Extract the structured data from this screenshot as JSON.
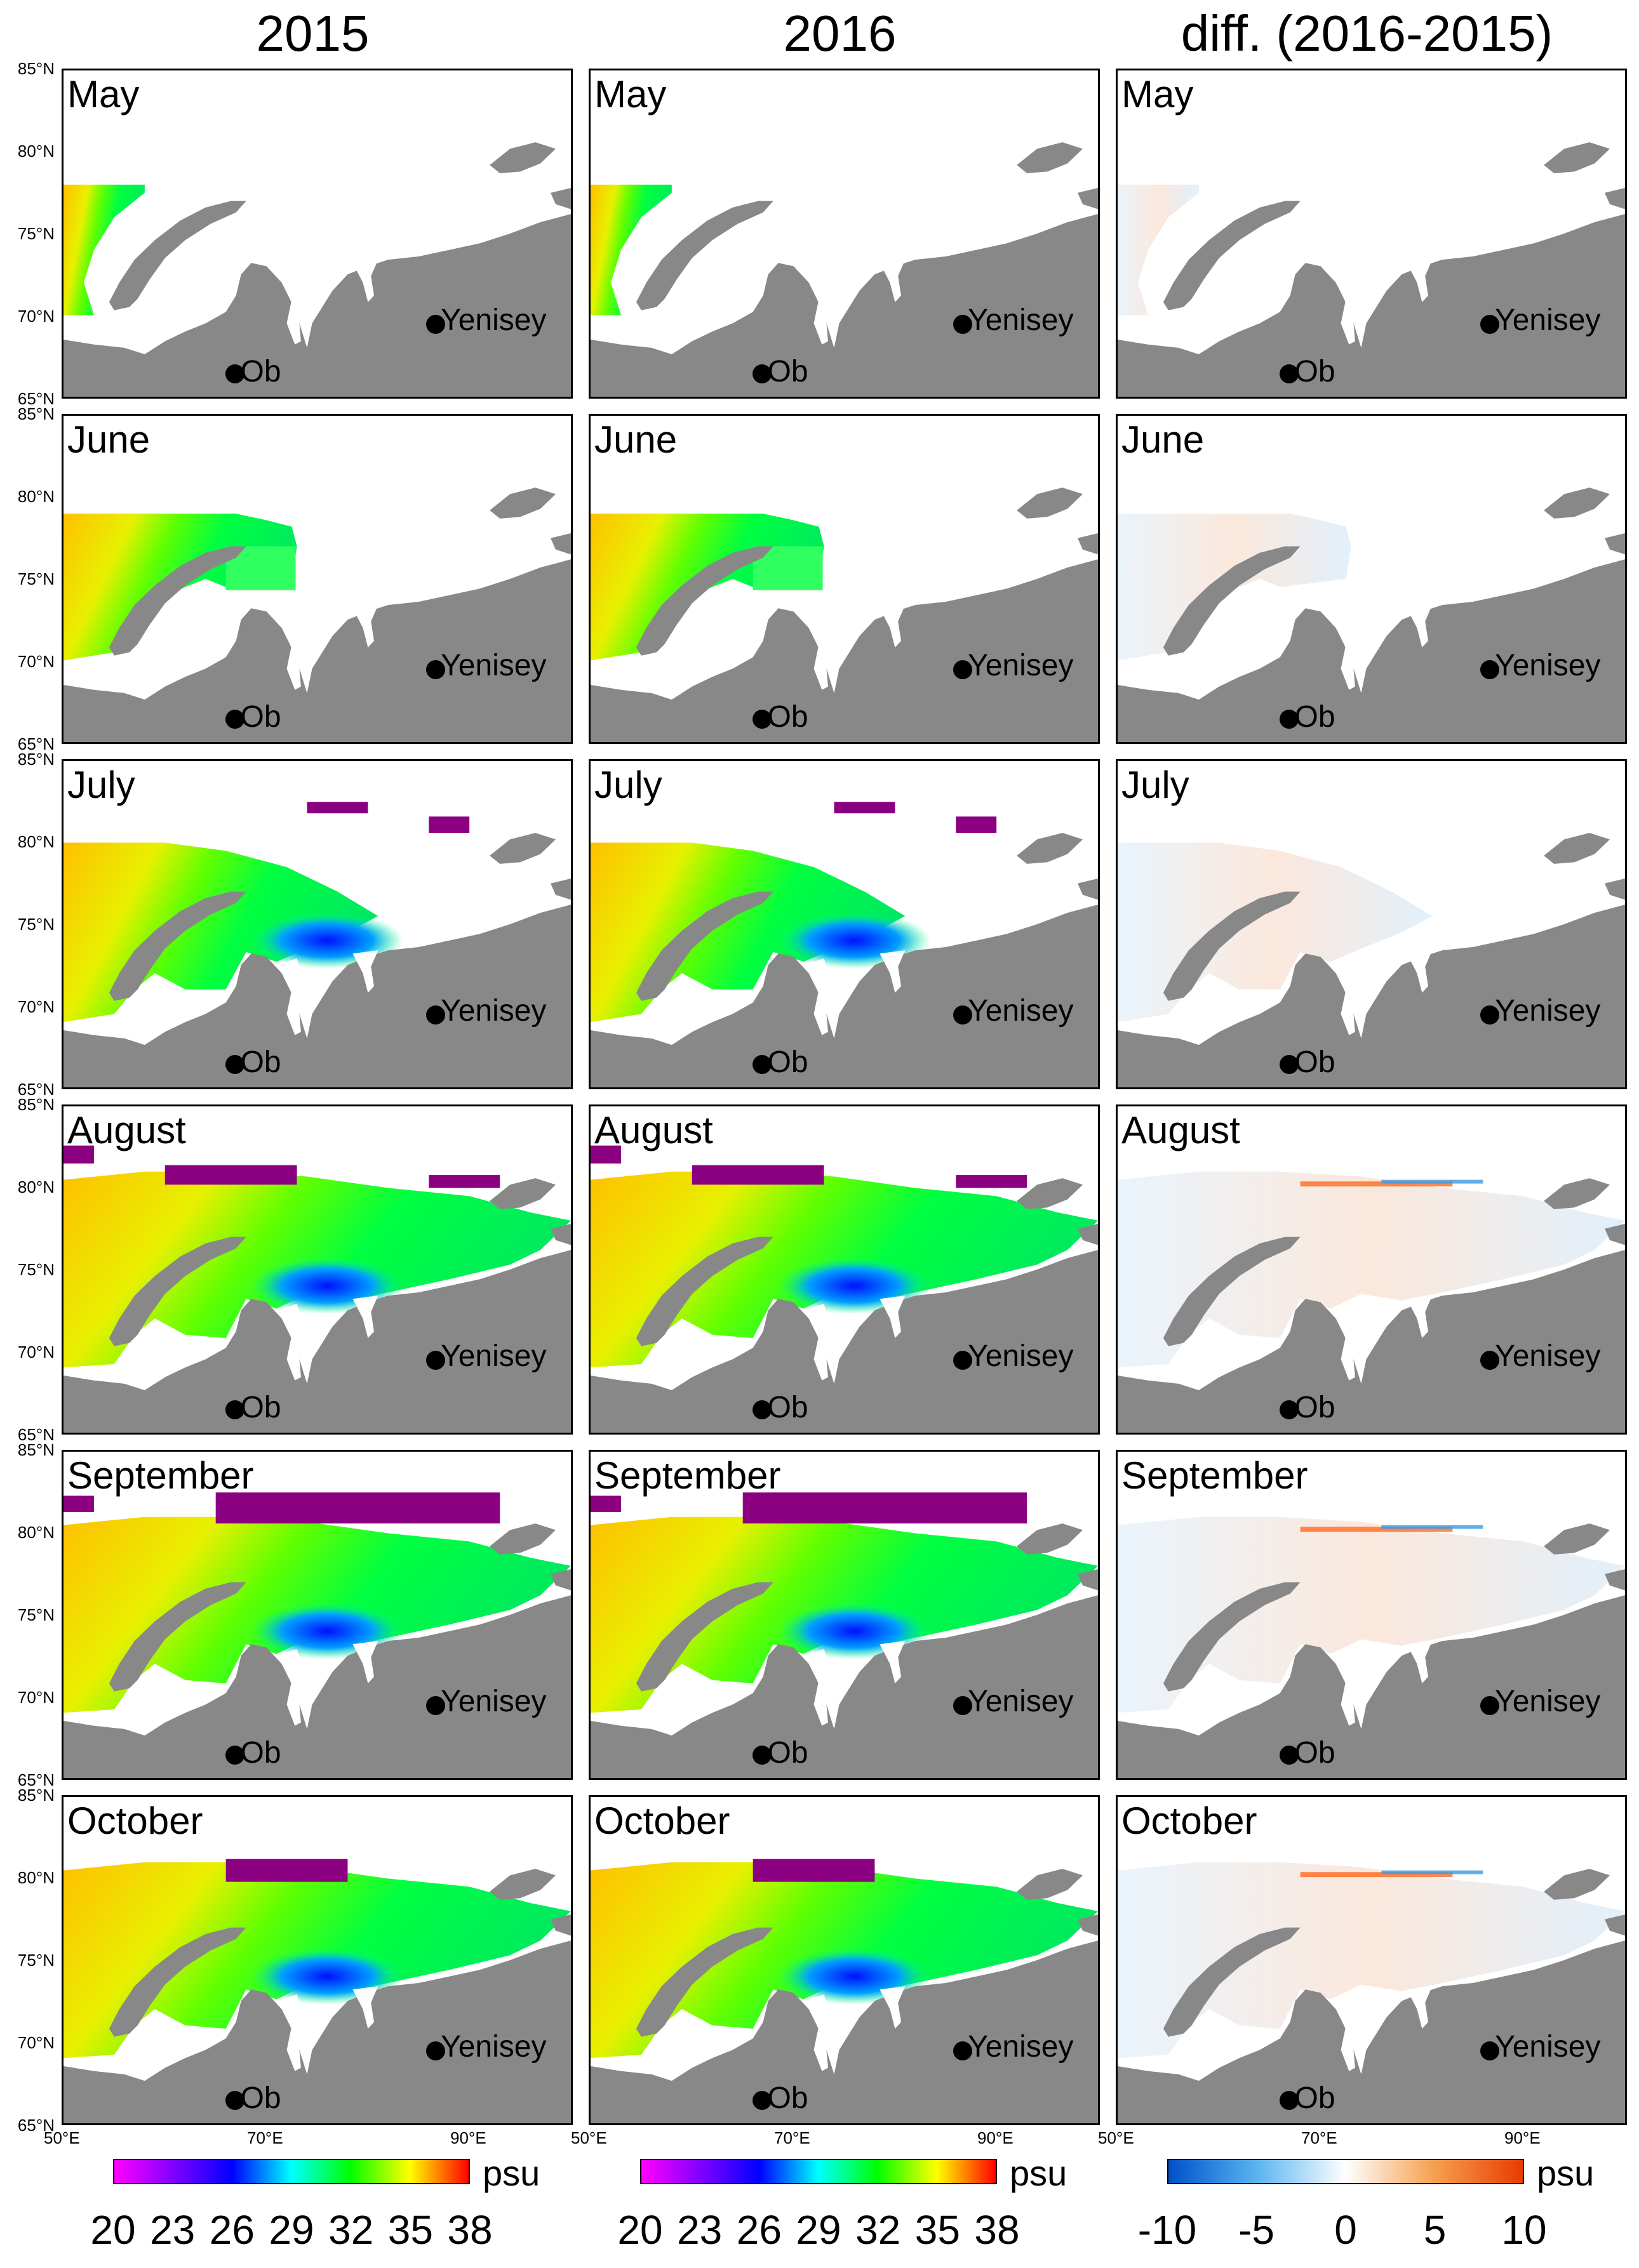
{
  "column_titles": [
    "2015",
    "2016",
    "diff. (2016-2015)"
  ],
  "months": [
    "May",
    "June",
    "July",
    "August",
    "September",
    "October"
  ],
  "rivers": {
    "ob": "Ob",
    "yenisey": "Yenisey"
  },
  "lat_labels": [
    "85°N",
    "80°N",
    "75°N",
    "70°N",
    "65°N"
  ],
  "lon_labels": [
    "50°E",
    "70°E",
    "90°E"
  ],
  "colorbars": [
    {
      "unit": "psu",
      "ticks": [
        "20",
        "23",
        "26",
        "29",
        "32",
        "35",
        "38"
      ],
      "colors": [
        "#ff00ff",
        "#8000ff",
        "#0000ff",
        "#00ffff",
        "#00ff00",
        "#ffff00",
        "#ff0000"
      ]
    },
    {
      "unit": "psu",
      "ticks": [
        "20",
        "23",
        "26",
        "29",
        "32",
        "35",
        "38"
      ],
      "colors": [
        "#ff00ff",
        "#8000ff",
        "#0000ff",
        "#00ffff",
        "#00ff00",
        "#ffff00",
        "#ff0000"
      ]
    },
    {
      "unit": "psu",
      "ticks": [
        "-10",
        "-5",
        "0",
        "5",
        "10"
      ],
      "colors": [
        "#0050c8",
        "#5ab4f0",
        "#ffffff",
        "#f5a050",
        "#e83c00"
      ]
    }
  ],
  "colors": {
    "land": "#888888",
    "ocean": "#ffffff",
    "ice_edge": "#8b0080"
  },
  "chart_data": {
    "type": "heatmap",
    "description_units": "psu",
    "x_range_deg_e": [
      50,
      100
    ],
    "y_range_deg_n": [
      65,
      85
    ],
    "columns": [
      "2015",
      "2016",
      "diff. (2016-2015)"
    ],
    "rows": [
      "May",
      "June",
      "July",
      "August",
      "September",
      "October"
    ],
    "salinity_scale": {
      "min": 20,
      "max": 38,
      "ticks": [
        20,
        23,
        26,
        29,
        32,
        35,
        38
      ]
    },
    "difference_scale": {
      "min": -10,
      "max": 10,
      "ticks": [
        -10,
        -5,
        0,
        5,
        10
      ]
    }
  }
}
